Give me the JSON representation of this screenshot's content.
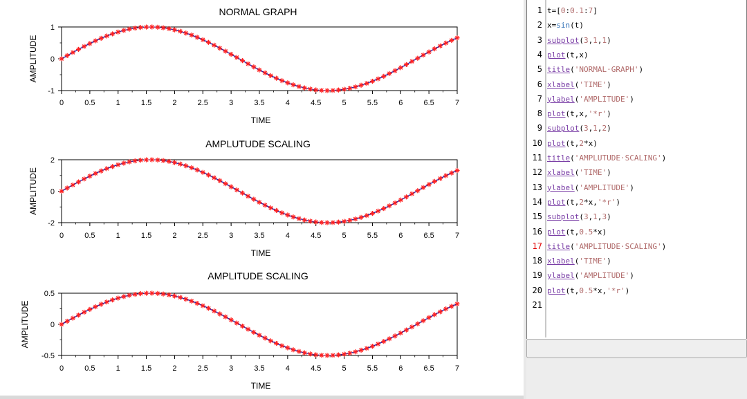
{
  "figure": {
    "subplots": [
      {
        "title": "NORMAL GRAPH",
        "xlabel": "TIME",
        "ylabel": "AMPLITUDE",
        "scale": 1,
        "xlim": [
          0,
          7
        ],
        "ylim": [
          -1,
          1
        ],
        "xticks": [
          "0",
          "0.5",
          "1",
          "1.5",
          "2",
          "2.5",
          "3",
          "3.5",
          "4",
          "4.5",
          "5",
          "5.5",
          "6",
          "6.5",
          "7"
        ],
        "yticks": [
          {
            "v": -1,
            "label": "-1"
          },
          {
            "v": 0,
            "label": "0"
          },
          {
            "v": 1,
            "label": "1"
          }
        ]
      },
      {
        "title": "AMPLUTUDE SCALING",
        "xlabel": "TIME",
        "ylabel": "AMPLITUDE",
        "scale": 2,
        "xlim": [
          0,
          7
        ],
        "ylim": [
          -2,
          2
        ],
        "xticks": [
          "0",
          "0.5",
          "1",
          "1.5",
          "2",
          "2.5",
          "3",
          "3.5",
          "4",
          "4.5",
          "5",
          "5.5",
          "6",
          "6.5",
          "7"
        ],
        "yticks": [
          {
            "v": -2,
            "label": "-2"
          },
          {
            "v": 0,
            "label": "0"
          },
          {
            "v": 2,
            "label": "2"
          }
        ]
      },
      {
        "title": "AMPLITUDE SCALING",
        "xlabel": "TIME",
        "ylabel": "AMPLITUDE",
        "scale": 0.5,
        "xlim": [
          0,
          7
        ],
        "ylim": [
          -0.5,
          0.5
        ],
        "xticks": [
          "0",
          "0.5",
          "1",
          "1.5",
          "2",
          "2.5",
          "3",
          "3.5",
          "4",
          "4.5",
          "5",
          "5.5",
          "6",
          "6.5",
          "7"
        ],
        "yticks": [
          {
            "v": -0.5,
            "label": "-0.5"
          },
          {
            "v": 0,
            "label": "0"
          },
          {
            "v": 0.5,
            "label": "0.5"
          }
        ]
      }
    ]
  },
  "chart_data": [
    {
      "type": "line",
      "title": "NORMAL GRAPH",
      "xlabel": "TIME",
      "ylabel": "AMPLITUDE",
      "xlim": [
        0,
        7
      ],
      "ylim": [
        -1,
        1
      ],
      "x": [
        0,
        0.1,
        0.2,
        0.3,
        0.4,
        0.5,
        0.6,
        0.7,
        0.8,
        0.9,
        1,
        1.1,
        1.2,
        1.3,
        1.4,
        1.5,
        1.6,
        1.7,
        1.8,
        1.9,
        2,
        2.1,
        2.2,
        2.3,
        2.4,
        2.5,
        2.6,
        2.7,
        2.8,
        2.9,
        3,
        3.1,
        3.2,
        3.3,
        3.4,
        3.5,
        3.6,
        3.7,
        3.8,
        3.9,
        4,
        4.1,
        4.2,
        4.3,
        4.4,
        4.5,
        4.6,
        4.7,
        4.8,
        4.9,
        5,
        5.1,
        5.2,
        5.3,
        5.4,
        5.5,
        5.6,
        5.7,
        5.8,
        5.9,
        6,
        6.1,
        6.2,
        6.3,
        6.4,
        6.5,
        6.6,
        6.7,
        6.8,
        6.9,
        7
      ],
      "series": [
        {
          "style": "blue-line",
          "values": [
            0,
            0.1,
            0.199,
            0.296,
            0.389,
            0.479,
            0.565,
            0.644,
            0.717,
            0.783,
            0.841,
            0.891,
            0.932,
            0.964,
            0.985,
            0.997,
            1,
            0.992,
            0.974,
            0.946,
            0.909,
            0.863,
            0.808,
            0.746,
            0.675,
            0.598,
            0.516,
            0.427,
            0.335,
            0.239,
            0.141,
            0.042,
            -0.058,
            -0.158,
            -0.256,
            -0.351,
            -0.443,
            -0.53,
            -0.612,
            -0.688,
            -0.757,
            -0.818,
            -0.872,
            -0.916,
            -0.952,
            -0.978,
            -0.994,
            -1,
            -0.996,
            -0.982,
            -0.959,
            -0.926,
            -0.883,
            -0.832,
            -0.773,
            -0.706,
            -0.631,
            -0.551,
            -0.465,
            -0.374,
            -0.279,
            -0.182,
            -0.083,
            0.017,
            0.117,
            0.215,
            0.312,
            0.405,
            0.494,
            0.578,
            0.657
          ]
        },
        {
          "style": "red-asterisk",
          "values": [
            0,
            0.1,
            0.199,
            0.296,
            0.389,
            0.479,
            0.565,
            0.644,
            0.717,
            0.783,
            0.841,
            0.891,
            0.932,
            0.964,
            0.985,
            0.997,
            1,
            0.992,
            0.974,
            0.946,
            0.909,
            0.863,
            0.808,
            0.746,
            0.675,
            0.598,
            0.516,
            0.427,
            0.335,
            0.239,
            0.141,
            0.042,
            -0.058,
            -0.158,
            -0.256,
            -0.351,
            -0.443,
            -0.53,
            -0.612,
            -0.688,
            -0.757,
            -0.818,
            -0.872,
            -0.916,
            -0.952,
            -0.978,
            -0.994,
            -1,
            -0.996,
            -0.982,
            -0.959,
            -0.926,
            -0.883,
            -0.832,
            -0.773,
            -0.706,
            -0.631,
            -0.551,
            -0.465,
            -0.374,
            -0.279,
            -0.182,
            -0.083,
            0.017,
            0.117,
            0.215,
            0.312,
            0.405,
            0.494,
            0.578,
            0.657
          ]
        }
      ]
    },
    {
      "type": "line",
      "title": "AMPLUTUDE SCALING",
      "xlabel": "TIME",
      "ylabel": "AMPLITUDE",
      "xlim": [
        0,
        7
      ],
      "ylim": [
        -2,
        2
      ],
      "x": [
        0,
        0.1,
        0.2,
        0.3,
        0.4,
        0.5,
        0.6,
        0.7,
        0.8,
        0.9,
        1,
        1.1,
        1.2,
        1.3,
        1.4,
        1.5,
        1.6,
        1.7,
        1.8,
        1.9,
        2,
        2.1,
        2.2,
        2.3,
        2.4,
        2.5,
        2.6,
        2.7,
        2.8,
        2.9,
        3,
        3.1,
        3.2,
        3.3,
        3.4,
        3.5,
        3.6,
        3.7,
        3.8,
        3.9,
        4,
        4.1,
        4.2,
        4.3,
        4.4,
        4.5,
        4.6,
        4.7,
        4.8,
        4.9,
        5,
        5.1,
        5.2,
        5.3,
        5.4,
        5.5,
        5.6,
        5.7,
        5.8,
        5.9,
        6,
        6.1,
        6.2,
        6.3,
        6.4,
        6.5,
        6.6,
        6.7,
        6.8,
        6.9,
        7
      ],
      "series": [
        {
          "style": "blue-line",
          "values": [
            0,
            0.2,
            0.397,
            0.591,
            0.779,
            0.959,
            1.129,
            1.288,
            1.435,
            1.567,
            1.683,
            1.782,
            1.864,
            1.927,
            1.971,
            1.995,
            1.999,
            1.983,
            1.948,
            1.893,
            1.819,
            1.726,
            1.617,
            1.491,
            1.351,
            1.197,
            1.031,
            0.855,
            0.67,
            0.478,
            0.282,
            0.083,
            -0.117,
            -0.316,
            -0.511,
            -0.702,
            -0.885,
            -1.06,
            -1.224,
            -1.376,
            -1.514,
            -1.637,
            -1.743,
            -1.833,
            -1.904,
            -1.955,
            -1.988,
            -2,
            -1.992,
            -1.964,
            -1.918,
            -1.852,
            -1.767,
            -1.664,
            -1.546,
            -1.411,
            -1.263,
            -1.102,
            -0.93,
            -0.748,
            -0.559,
            -0.364,
            -0.166,
            0.034,
            0.233,
            0.431,
            0.623,
            0.809,
            0.988,
            1.157,
            1.314
          ]
        },
        {
          "style": "red-asterisk",
          "values": [
            0,
            0.2,
            0.397,
            0.591,
            0.779,
            0.959,
            1.129,
            1.288,
            1.435,
            1.567,
            1.683,
            1.782,
            1.864,
            1.927,
            1.971,
            1.995,
            1.999,
            1.983,
            1.948,
            1.893,
            1.819,
            1.726,
            1.617,
            1.491,
            1.351,
            1.197,
            1.031,
            0.855,
            0.67,
            0.478,
            0.282,
            0.083,
            -0.117,
            -0.316,
            -0.511,
            -0.702,
            -0.885,
            -1.06,
            -1.224,
            -1.376,
            -1.514,
            -1.637,
            -1.743,
            -1.833,
            -1.904,
            -1.955,
            -1.988,
            -2,
            -1.992,
            -1.964,
            -1.918,
            -1.852,
            -1.767,
            -1.664,
            -1.546,
            -1.411,
            -1.263,
            -1.102,
            -0.93,
            -0.748,
            -0.559,
            -0.364,
            -0.166,
            0.034,
            0.233,
            0.431,
            0.623,
            0.809,
            0.988,
            1.157,
            1.314
          ]
        }
      ]
    },
    {
      "type": "line",
      "title": "AMPLITUDE SCALING",
      "xlabel": "TIME",
      "ylabel": "AMPLITUDE",
      "xlim": [
        0,
        7
      ],
      "ylim": [
        -0.5,
        0.5
      ],
      "x": [
        0,
        0.1,
        0.2,
        0.3,
        0.4,
        0.5,
        0.6,
        0.7,
        0.8,
        0.9,
        1,
        1.1,
        1.2,
        1.3,
        1.4,
        1.5,
        1.6,
        1.7,
        1.8,
        1.9,
        2,
        2.1,
        2.2,
        2.3,
        2.4,
        2.5,
        2.6,
        2.7,
        2.8,
        2.9,
        3,
        3.1,
        3.2,
        3.3,
        3.4,
        3.5,
        3.6,
        3.7,
        3.8,
        3.9,
        4,
        4.1,
        4.2,
        4.3,
        4.4,
        4.5,
        4.6,
        4.7,
        4.8,
        4.9,
        5,
        5.1,
        5.2,
        5.3,
        5.4,
        5.5,
        5.6,
        5.7,
        5.8,
        5.9,
        6,
        6.1,
        6.2,
        6.3,
        6.4,
        6.5,
        6.6,
        6.7,
        6.8,
        6.9,
        7
      ],
      "series": [
        {
          "style": "blue-line",
          "values": [
            0,
            0.05,
            0.099,
            0.148,
            0.195,
            0.24,
            0.282,
            0.322,
            0.359,
            0.392,
            0.421,
            0.446,
            0.466,
            0.482,
            0.493,
            0.499,
            0.5,
            0.496,
            0.487,
            0.473,
            0.455,
            0.432,
            0.404,
            0.373,
            0.338,
            0.299,
            0.258,
            0.214,
            0.167,
            0.12,
            0.071,
            0.021,
            -0.029,
            -0.079,
            -0.128,
            -0.175,
            -0.221,
            -0.265,
            -0.306,
            -0.344,
            -0.378,
            -0.409,
            -0.436,
            -0.458,
            -0.476,
            -0.489,
            -0.497,
            -0.5,
            -0.498,
            -0.491,
            -0.479,
            -0.463,
            -0.442,
            -0.416,
            -0.386,
            -0.353,
            -0.316,
            -0.275,
            -0.232,
            -0.187,
            -0.14,
            -0.091,
            -0.042,
            0.008,
            0.058,
            0.108,
            0.156,
            0.202,
            0.247,
            0.289,
            0.328
          ]
        },
        {
          "style": "red-asterisk",
          "values": [
            0,
            0.05,
            0.099,
            0.148,
            0.195,
            0.24,
            0.282,
            0.322,
            0.359,
            0.392,
            0.421,
            0.446,
            0.466,
            0.482,
            0.493,
            0.499,
            0.5,
            0.496,
            0.487,
            0.473,
            0.455,
            0.432,
            0.404,
            0.373,
            0.338,
            0.299,
            0.258,
            0.214,
            0.167,
            0.12,
            0.071,
            0.021,
            -0.029,
            -0.079,
            -0.128,
            -0.175,
            -0.221,
            -0.265,
            -0.306,
            -0.344,
            -0.378,
            -0.409,
            -0.436,
            -0.458,
            -0.476,
            -0.489,
            -0.497,
            -0.5,
            -0.498,
            -0.491,
            -0.479,
            -0.463,
            -0.442,
            -0.416,
            -0.386,
            -0.353,
            -0.316,
            -0.275,
            -0.232,
            -0.187,
            -0.14,
            -0.091,
            -0.042,
            0.008,
            0.058,
            0.108,
            0.156,
            0.202,
            0.247,
            0.289,
            0.328
          ]
        }
      ]
    }
  ],
  "editor": {
    "line_numbers": [
      "1",
      "2",
      "3",
      "4",
      "5",
      "6",
      "7",
      "8",
      "9",
      "10",
      "11",
      "12",
      "13",
      "14",
      "15",
      "16",
      "17",
      "18",
      "19",
      "20",
      "21"
    ],
    "error_line": 17,
    "lines": [
      "t=[0:0.1:7]",
      "x=sin(t)",
      "subplot(3,1,1)",
      "plot(t,x)",
      "title('NORMAL GRAPH')",
      "xlabel('TIME')",
      "ylabel('AMPLITUDE')",
      "plot(t,x,'*r')",
      "subplot(3,1,2)",
      "plot(t,2*x)",
      "title('AMPLUTUDE SCALING')",
      "xlabel('TIME')",
      "ylabel('AMPLITUDE')",
      "plot(t,2*x,'*r')",
      "subplot(3,1,3)",
      "plot(t,0.5*x)",
      "title('AMPLITUDE SCALING')",
      "xlabel('TIME')",
      "ylabel('AMPLITUDE')",
      "plot(t,0.5*x,'*r')",
      ""
    ]
  },
  "colors": {
    "line": "#1f1fa8",
    "marker": "#ff2020",
    "function": "#7a3ea6",
    "builtin": "#2f6fb5",
    "literal": "#b06a6a",
    "error_line_number": "#e00000"
  }
}
